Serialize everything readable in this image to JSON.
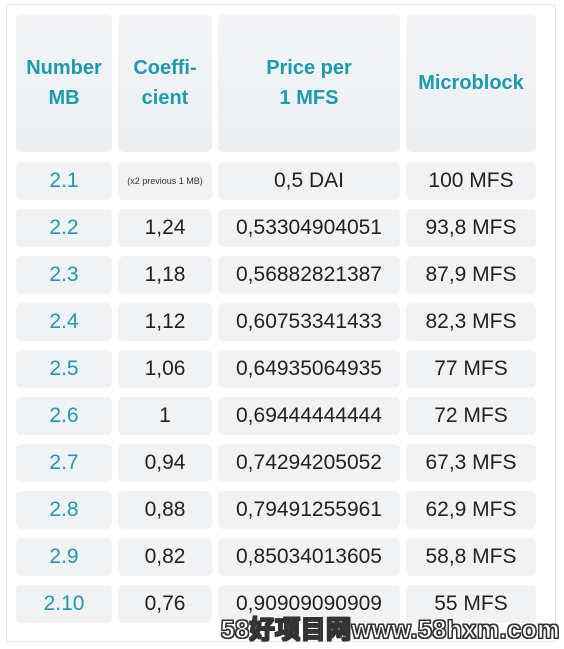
{
  "headers": [
    "Number\nMB",
    "Coeffi-\ncient",
    "Price per\n1 MFS",
    "Microblock"
  ],
  "rows": [
    {
      "mb": "2.1",
      "coef": "(x2 previous 1 MB)",
      "price": "0,5 DAI",
      "micro": "100 MFS"
    },
    {
      "mb": "2.2",
      "coef": "1,24",
      "price": "0,53304904051",
      "micro": "93,8 MFS"
    },
    {
      "mb": "2.3",
      "coef": "1,18",
      "price": "0,56882821387",
      "micro": "87,9 MFS"
    },
    {
      "mb": "2.4",
      "coef": "1,12",
      "price": "0,60753341433",
      "micro": "82,3 MFS"
    },
    {
      "mb": "2.5",
      "coef": "1,06",
      "price": "0,64935064935",
      "micro": "77 MFS"
    },
    {
      "mb": "2.6",
      "coef": "1",
      "price": "0,69444444444",
      "micro": "72 MFS"
    },
    {
      "mb": "2.7",
      "coef": "0,94",
      "price": "0,74294205052",
      "micro": "67,3 MFS"
    },
    {
      "mb": "2.8",
      "coef": "0,88",
      "price": "0,79491255961",
      "micro": "62,9 MFS"
    },
    {
      "mb": "2.9",
      "coef": "0,82",
      "price": "0,85034013605",
      "micro": "58,8 MFS"
    },
    {
      "mb": "2.10",
      "coef": "0,76",
      "price": "0,90909090909",
      "micro": "55 MFS"
    }
  ],
  "watermark": "58好项目网www.58hxm.com",
  "colors": {
    "accent": "#1a9bb0",
    "cell_bg": "#f1f2f4"
  }
}
